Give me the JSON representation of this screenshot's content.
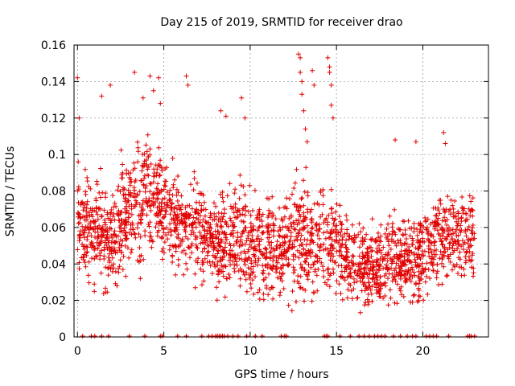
{
  "chart_data": {
    "type": "scatter",
    "title": "Day 215 of 2019, SRMTID for receiver drao",
    "xlabel": "GPS time / hours",
    "ylabel": "SRMTID / TECUs",
    "xlim": [
      -0.2,
      23.8
    ],
    "ylim": [
      0,
      0.16
    ],
    "xticks": [
      0,
      5,
      10,
      15,
      20
    ],
    "yticks": [
      0,
      0.02,
      0.04,
      0.06,
      0.08,
      0.1,
      0.12,
      0.14,
      0.16
    ],
    "xtick_labels": [
      "0",
      "5",
      "10",
      "15",
      "20"
    ],
    "ytick_labels": [
      "0",
      "0.02",
      "0.04",
      "0.06",
      "0.08",
      "0.1",
      "0.12",
      "0.14",
      "0.16"
    ],
    "grid": true,
    "marker": "+",
    "color": "#e00000",
    "envelope": {
      "hours": [
        0,
        1,
        2,
        3,
        4,
        5,
        6,
        7,
        8,
        9,
        10,
        11,
        12,
        13,
        14,
        15,
        16,
        17,
        18,
        19,
        20,
        21,
        22,
        23
      ],
      "mean": [
        0.06,
        0.056,
        0.055,
        0.066,
        0.078,
        0.072,
        0.062,
        0.06,
        0.05,
        0.058,
        0.05,
        0.048,
        0.052,
        0.056,
        0.052,
        0.05,
        0.04,
        0.036,
        0.042,
        0.04,
        0.044,
        0.056,
        0.054,
        0.052
      ],
      "spread": [
        0.016,
        0.016,
        0.018,
        0.02,
        0.02,
        0.018,
        0.016,
        0.018,
        0.016,
        0.018,
        0.018,
        0.016,
        0.016,
        0.02,
        0.018,
        0.016,
        0.014,
        0.012,
        0.016,
        0.014,
        0.016,
        0.016,
        0.016,
        0.014
      ]
    },
    "peaks": [
      {
        "x": 0.0,
        "y": 0.142
      },
      {
        "x": 0.1,
        "y": 0.12
      },
      {
        "x": 1.4,
        "y": 0.132
      },
      {
        "x": 1.9,
        "y": 0.138
      },
      {
        "x": 3.3,
        "y": 0.145
      },
      {
        "x": 3.8,
        "y": 0.131
      },
      {
        "x": 4.2,
        "y": 0.143
      },
      {
        "x": 4.4,
        "y": 0.135
      },
      {
        "x": 4.7,
        "y": 0.142
      },
      {
        "x": 4.8,
        "y": 0.128
      },
      {
        "x": 6.3,
        "y": 0.143
      },
      {
        "x": 6.4,
        "y": 0.138
      },
      {
        "x": 8.3,
        "y": 0.124
      },
      {
        "x": 8.6,
        "y": 0.121
      },
      {
        "x": 9.5,
        "y": 0.131
      },
      {
        "x": 9.7,
        "y": 0.12
      },
      {
        "x": 12.8,
        "y": 0.155
      },
      {
        "x": 12.9,
        "y": 0.153
      },
      {
        "x": 12.9,
        "y": 0.145
      },
      {
        "x": 13.0,
        "y": 0.14
      },
      {
        "x": 13.0,
        "y": 0.133
      },
      {
        "x": 13.1,
        "y": 0.124
      },
      {
        "x": 13.2,
        "y": 0.114
      },
      {
        "x": 13.3,
        "y": 0.107
      },
      {
        "x": 13.6,
        "y": 0.146
      },
      {
        "x": 13.7,
        "y": 0.138
      },
      {
        "x": 14.5,
        "y": 0.153
      },
      {
        "x": 14.6,
        "y": 0.148
      },
      {
        "x": 14.6,
        "y": 0.145
      },
      {
        "x": 14.7,
        "y": 0.138
      },
      {
        "x": 14.7,
        "y": 0.127
      },
      {
        "x": 14.8,
        "y": 0.12
      },
      {
        "x": 18.4,
        "y": 0.108
      },
      {
        "x": 19.6,
        "y": 0.107
      },
      {
        "x": 21.2,
        "y": 0.112
      },
      {
        "x": 21.3,
        "y": 0.106
      }
    ],
    "zero_hours": [
      0.3,
      0.8,
      1.0,
      1.4,
      1.8,
      3.0,
      3.9,
      4.8,
      4.9,
      5.8,
      6.3,
      7.2,
      7.6,
      7.8,
      8.0,
      8.1,
      8.2,
      8.3,
      8.4,
      8.5,
      8.7,
      9.0,
      9.3,
      9.8,
      10.3,
      10.7,
      11.8,
      12.0,
      12.1,
      14.3,
      14.4,
      14.5,
      15.2,
      15.8,
      16.3,
      16.6,
      16.9,
      17.2,
      17.4,
      17.6,
      17.8,
      18.3,
      18.7,
      19.1,
      19.4,
      19.6,
      20.2,
      20.4,
      20.6,
      20.8,
      21.5,
      22.6,
      22.7,
      22.8,
      23.0
    ]
  }
}
